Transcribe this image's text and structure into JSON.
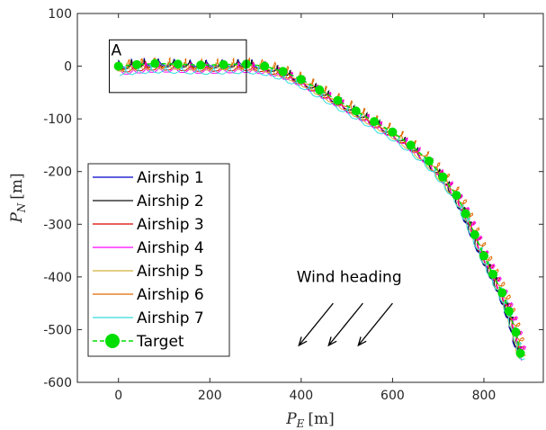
{
  "chart_data": {
    "type": "line",
    "title": "",
    "xlabel": "P_E [m]",
    "ylabel": "P_N [m]",
    "xlim": [
      -90,
      930
    ],
    "ylim": [
      -600,
      100
    ],
    "xticks": [
      0,
      200,
      400,
      600,
      800
    ],
    "yticks": [
      -600,
      -500,
      -400,
      -300,
      -200,
      -100,
      0,
      100
    ],
    "grid": false,
    "legend_position": "bottom-left",
    "path": {
      "x": [
        0,
        40,
        80,
        130,
        180,
        230,
        280,
        320,
        360,
        400,
        440,
        480,
        520,
        560,
        600,
        640,
        680,
        710,
        740,
        760,
        780,
        800,
        820,
        840,
        855,
        870,
        880
      ],
      "y": [
        0,
        3,
        5,
        4,
        2,
        3,
        4,
        0,
        -10,
        -25,
        -45,
        -65,
        -85,
        -105,
        -125,
        -150,
        -180,
        -210,
        -245,
        -280,
        -320,
        -360,
        -395,
        -430,
        -465,
        -505,
        -545
      ]
    },
    "series": [
      {
        "name": "Airship 1",
        "color": "#0000cc",
        "offset": [
          -6,
          3
        ],
        "wobble": 1.0
      },
      {
        "name": "Airship 2",
        "color": "#111111",
        "offset": [
          -3,
          1
        ],
        "wobble": 1.3
      },
      {
        "name": "Airship 3",
        "color": "#dd0000",
        "offset": [
          4,
          -4
        ],
        "wobble": 1.6
      },
      {
        "name": "Airship 4",
        "color": "#ff00ff",
        "offset": [
          8,
          -7
        ],
        "wobble": 2.0
      },
      {
        "name": "Airship 5",
        "color": "#d4b03a",
        "offset": [
          -2,
          -3
        ],
        "wobble": 1.2
      },
      {
        "name": "Airship 6",
        "color": "#e06a00",
        "offset": [
          6,
          2
        ],
        "wobble": 1.8
      },
      {
        "name": "Airship 7",
        "color": "#33dddd",
        "offset": [
          2,
          -10
        ],
        "wobble": 1.4
      }
    ],
    "target": {
      "name": "Target",
      "color": "#00dd00",
      "marker": "circle",
      "line_style": "dashed"
    },
    "annotations": {
      "box_label": "A",
      "box": {
        "x": [
          -20,
          280
        ],
        "y": [
          -50,
          50
        ]
      },
      "wind_label": "Wind heading",
      "wind_arrows": [
        {
          "from": [
            470,
            -450
          ],
          "to": [
            395,
            -530
          ]
        },
        {
          "from": [
            535,
            -450
          ],
          "to": [
            460,
            -530
          ]
        },
        {
          "from": [
            600,
            -450
          ],
          "to": [
            525,
            -530
          ]
        }
      ]
    }
  }
}
